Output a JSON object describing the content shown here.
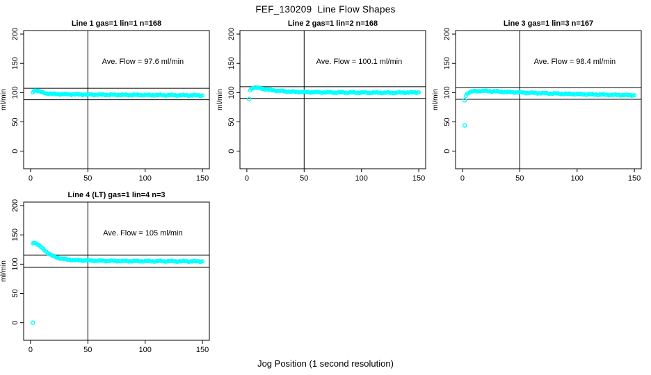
{
  "page": {
    "title": "FEF_130209  Line Flow Shapes",
    "xlabel": "Jog Position (1 second resolution)",
    "background": "#ffffff",
    "point_color": "#00ffff",
    "line_color": "#000000"
  },
  "chart_data": [
    {
      "type": "scatter",
      "title": "Line 1 gas=1 lin=1 n=168",
      "ylabel": "ml/min",
      "annotation": "Ave. Flow =  97.6  ml/min",
      "ave_flow": 97.6,
      "n": 168,
      "ref_lines": [
        107.4,
        87.8
      ],
      "vline_x": 50,
      "axis_range": {
        "x": [
          0,
          150
        ],
        "y": [
          0,
          200
        ]
      },
      "xticks": [
        0,
        50,
        100,
        150
      ],
      "yticks": [
        0,
        50,
        100,
        150,
        200
      ],
      "keypoints": [
        [
          2,
          101
        ],
        [
          3,
          103.5
        ],
        [
          5,
          103.8
        ],
        [
          7,
          102.5
        ],
        [
          9,
          101
        ],
        [
          11,
          99.8
        ],
        [
          13,
          99
        ],
        [
          16,
          98.3
        ],
        [
          20,
          97.8
        ],
        [
          25,
          97.5
        ],
        [
          30,
          97.3
        ],
        [
          40,
          97
        ],
        [
          50,
          96.8
        ],
        [
          60,
          96.5
        ],
        [
          70,
          96.3
        ],
        [
          80,
          96.1
        ],
        [
          90,
          96
        ],
        [
          100,
          95.8
        ],
        [
          110,
          95.7
        ],
        [
          120,
          95.6
        ],
        [
          130,
          95.5
        ],
        [
          140,
          95.4
        ],
        [
          150,
          95.3
        ]
      ],
      "outliers": []
    },
    {
      "type": "scatter",
      "title": "Line 2 gas=1 lin=2 n=168",
      "ylabel": "ml/min",
      "annotation": "Ave. Flow =  100.1  ml/min",
      "ave_flow": 100.1,
      "n": 168,
      "ref_lines": [
        110.1,
        90.1
      ],
      "vline_x": 50,
      "axis_range": {
        "x": [
          0,
          150
        ],
        "y": [
          0,
          200
        ]
      },
      "xticks": [
        0,
        50,
        100,
        150
      ],
      "yticks": [
        0,
        50,
        100,
        150,
        200
      ],
      "keypoints": [
        [
          3,
          104.5
        ],
        [
          4,
          106.5
        ],
        [
          5,
          107.8
        ],
        [
          6,
          108.3
        ],
        [
          8,
          108.4
        ],
        [
          10,
          108
        ],
        [
          12,
          107.4
        ],
        [
          15,
          106.3
        ],
        [
          18,
          105.3
        ],
        [
          22,
          104.2
        ],
        [
          26,
          103.3
        ],
        [
          30,
          102.7
        ],
        [
          35,
          102
        ],
        [
          40,
          101.5
        ],
        [
          50,
          101
        ],
        [
          60,
          100.7
        ],
        [
          70,
          100.4
        ],
        [
          80,
          100.2
        ],
        [
          90,
          100.1
        ],
        [
          100,
          100
        ],
        [
          110,
          99.9
        ],
        [
          120,
          99.8
        ],
        [
          130,
          99.9
        ],
        [
          140,
          100.1
        ],
        [
          150,
          100.4
        ]
      ],
      "outliers": [
        [
          2,
          89
        ]
      ]
    },
    {
      "type": "scatter",
      "title": "Line 3 gas=1 lin=3 n=167",
      "ylabel": "ml/min",
      "annotation": "Ave. Flow =  98.4  ml/min",
      "ave_flow": 98.4,
      "n": 167,
      "ref_lines": [
        108.2,
        88.6
      ],
      "vline_x": 50,
      "axis_range": {
        "x": [
          0,
          150
        ],
        "y": [
          0,
          200
        ]
      },
      "xticks": [
        0,
        50,
        100,
        150
      ],
      "yticks": [
        0,
        50,
        100,
        150,
        200
      ],
      "keypoints": [
        [
          3,
          95
        ],
        [
          4,
          98
        ],
        [
          6,
          100.5
        ],
        [
          8,
          101.8
        ],
        [
          12,
          102.5
        ],
        [
          16,
          102.8
        ],
        [
          20,
          102.7
        ],
        [
          25,
          102.4
        ],
        [
          30,
          102
        ],
        [
          35,
          101.5
        ],
        [
          40,
          101
        ],
        [
          50,
          100.3
        ],
        [
          60,
          99.6
        ],
        [
          70,
          99
        ],
        [
          80,
          98.4
        ],
        [
          90,
          97.9
        ],
        [
          100,
          97.4
        ],
        [
          110,
          97
        ],
        [
          120,
          96.6
        ],
        [
          130,
          96.2
        ],
        [
          140,
          95.8
        ],
        [
          150,
          95.5
        ]
      ],
      "outliers": [
        [
          2,
          87
        ],
        [
          2,
          44
        ]
      ]
    },
    {
      "type": "scatter",
      "title": "Line 4 (LT) gas=1 lin=4 n=3",
      "ylabel": "ml/min",
      "annotation": "Ave. Flow =  105  ml/min",
      "ave_flow": 105,
      "n": 3,
      "ref_lines": [
        115.5,
        94.5
      ],
      "vline_x": 50,
      "axis_range": {
        "x": [
          0,
          150
        ],
        "y": [
          0,
          200
        ]
      },
      "xticks": [
        0,
        50,
        100,
        150
      ],
      "yticks": [
        0,
        50,
        100,
        150,
        200
      ],
      "keypoints": [
        [
          2,
          136
        ],
        [
          3,
          137
        ],
        [
          4,
          136.5
        ],
        [
          5,
          135.5
        ],
        [
          6,
          134
        ],
        [
          8,
          131
        ],
        [
          10,
          127.5
        ],
        [
          12,
          124
        ],
        [
          14,
          121
        ],
        [
          16,
          118
        ],
        [
          18,
          115.5
        ],
        [
          20,
          113.5
        ],
        [
          22,
          112
        ],
        [
          25,
          110.3
        ],
        [
          28,
          109
        ],
        [
          32,
          108
        ],
        [
          36,
          107.3
        ],
        [
          40,
          106.8
        ],
        [
          50,
          106.2
        ],
        [
          60,
          105.8
        ],
        [
          70,
          105.5
        ],
        [
          80,
          105.3
        ],
        [
          90,
          105.2
        ],
        [
          100,
          105.1
        ],
        [
          110,
          105
        ],
        [
          120,
          105
        ],
        [
          130,
          104.9
        ],
        [
          140,
          104.9
        ],
        [
          150,
          104.8
        ]
      ],
      "outliers": [
        [
          2,
          0
        ]
      ]
    }
  ]
}
